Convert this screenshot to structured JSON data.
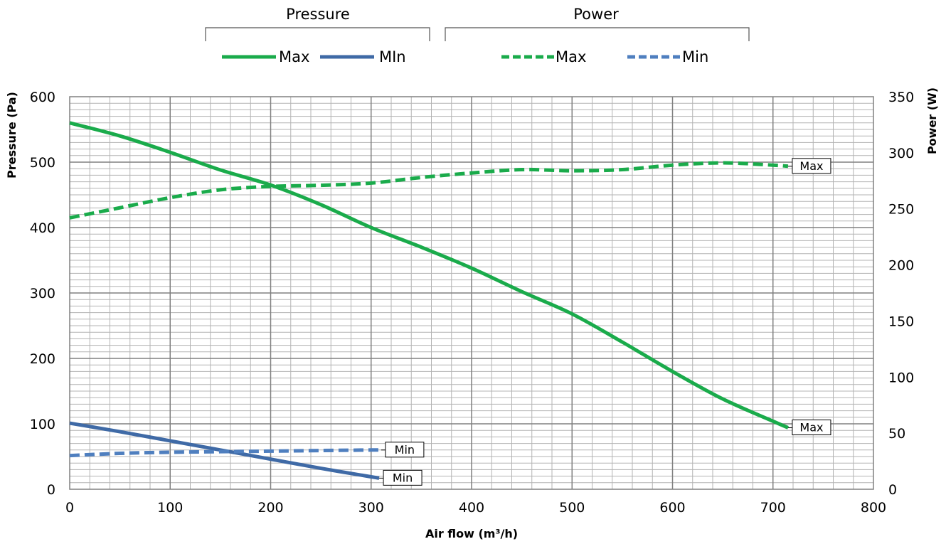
{
  "chart_data": {
    "type": "line",
    "x_axis": {
      "label": "Air flow (m³/h)",
      "range": [
        0,
        800
      ],
      "ticks": [
        "0",
        "100",
        "200",
        "300",
        "400",
        "500",
        "600",
        "700",
        "800"
      ]
    },
    "y_axis_left": {
      "label": "Pressure (Pa)",
      "range": [
        0,
        600
      ],
      "ticks": [
        "0",
        "100",
        "200",
        "300",
        "400",
        "500",
        "600"
      ]
    },
    "y_axis_right": {
      "label": "Power (W)",
      "range": [
        0,
        350
      ],
      "ticks": [
        "0",
        "50",
        "100",
        "150",
        "200",
        "250",
        "300",
        "350"
      ]
    },
    "grid": true,
    "legend": {
      "placement": "top",
      "groups": [
        {
          "title": "Pressure",
          "entries": [
            "Max",
            "MIn"
          ]
        },
        {
          "title": "Power",
          "entries": [
            "Max",
            "Min"
          ]
        }
      ]
    },
    "series": [
      {
        "group": "Pressure",
        "name": "Max",
        "axis": "left",
        "color": "#1aab4b",
        "dash": "solid",
        "end_label": "Max",
        "points": [
          [
            0,
            560
          ],
          [
            50,
            540
          ],
          [
            100,
            515
          ],
          [
            150,
            488
          ],
          [
            200,
            465
          ],
          [
            250,
            435
          ],
          [
            300,
            400
          ],
          [
            350,
            370
          ],
          [
            400,
            338
          ],
          [
            450,
            302
          ],
          [
            500,
            268
          ],
          [
            550,
            225
          ],
          [
            600,
            180
          ],
          [
            650,
            138
          ],
          [
            700,
            104
          ],
          [
            715,
            94
          ]
        ]
      },
      {
        "group": "Pressure",
        "name": "MIn",
        "axis": "left",
        "color": "#3f6aa6",
        "dash": "solid",
        "end_label": "Min",
        "points": [
          [
            0,
            101
          ],
          [
            50,
            88
          ],
          [
            100,
            74
          ],
          [
            150,
            60
          ],
          [
            200,
            46
          ],
          [
            250,
            32
          ],
          [
            300,
            19
          ],
          [
            308,
            17
          ]
        ]
      },
      {
        "group": "Power",
        "name": "Max",
        "axis": "right",
        "color": "#1aab4b",
        "dash": "dashed",
        "end_label": "Max",
        "points": [
          [
            0,
            242
          ],
          [
            50,
            251
          ],
          [
            100,
            260
          ],
          [
            150,
            267
          ],
          [
            200,
            270
          ],
          [
            250,
            271
          ],
          [
            300,
            273
          ],
          [
            350,
            278
          ],
          [
            400,
            282
          ],
          [
            450,
            285
          ],
          [
            500,
            284
          ],
          [
            550,
            285
          ],
          [
            600,
            289
          ],
          [
            650,
            291
          ],
          [
            700,
            289
          ],
          [
            715,
            288
          ]
        ]
      },
      {
        "group": "Power",
        "name": "Min",
        "axis": "right",
        "color": "#4f7fbf",
        "dash": "dashed",
        "end_label": "Min",
        "points": [
          [
            0,
            30
          ],
          [
            50,
            32
          ],
          [
            100,
            33
          ],
          [
            150,
            33.5
          ],
          [
            200,
            34
          ],
          [
            250,
            34.5
          ],
          [
            300,
            35
          ],
          [
            310,
            35
          ]
        ]
      }
    ]
  }
}
